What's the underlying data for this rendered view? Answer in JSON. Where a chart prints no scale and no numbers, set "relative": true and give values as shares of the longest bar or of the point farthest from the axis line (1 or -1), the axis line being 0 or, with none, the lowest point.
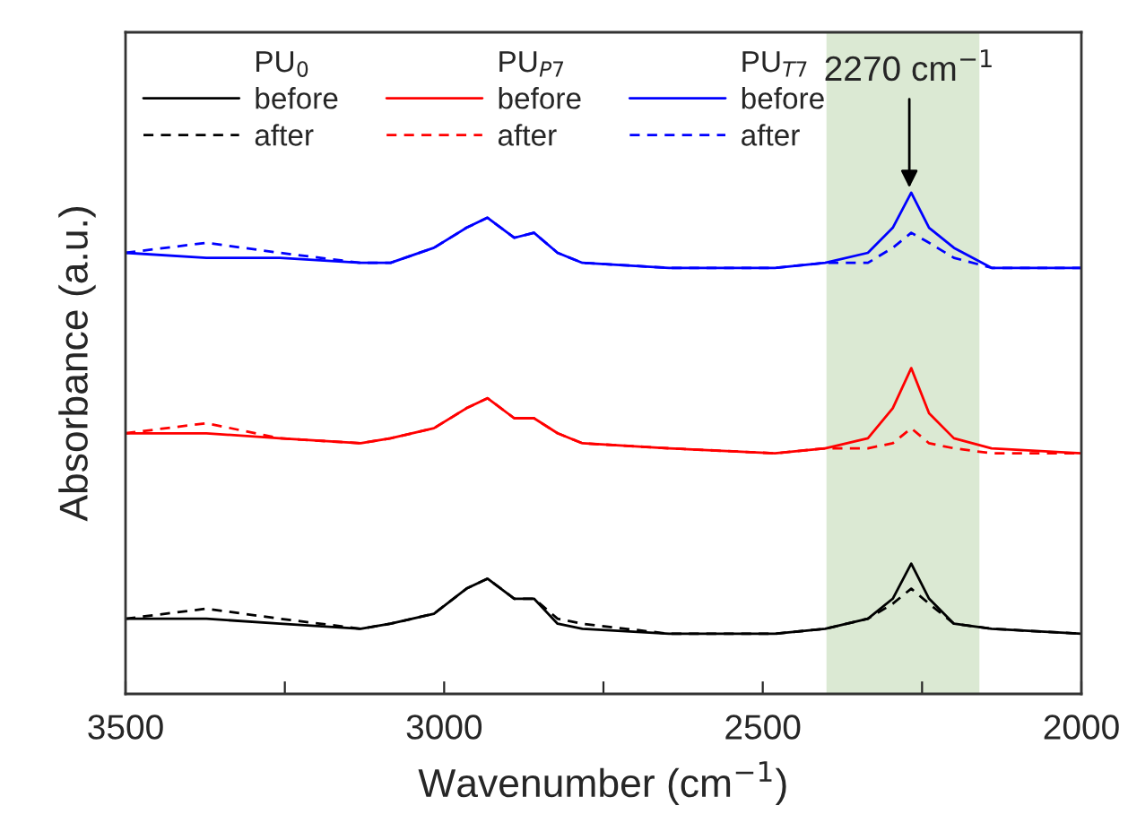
{
  "chart_data": {
    "type": "line",
    "relative": true,
    "xlabel": "Wavenumber (cm$^{−1}$)",
    "ylabel": "Absorbance (a.u.)",
    "x": [
      3500,
      3373,
      3258,
      3131,
      3084,
      3016,
      2965,
      2932,
      2890,
      2859,
      2822,
      2783,
      2647,
      2481,
      2402,
      2335,
      2296,
      2267,
      2239,
      2200,
      2141,
      2000
    ],
    "xlim": [
      3500,
      2000
    ],
    "xticks": [
      3500,
      {
        "value": 3250,
        "label": null
      },
      3000,
      {
        "value": 2750,
        "label": null
      },
      2500,
      {
        "value": 2250,
        "label": null
      },
      2000
    ],
    "series": [
      {
        "name": "before",
        "color": "#000000",
        "line_style": "solid",
        "values": [
          0.15,
          0.15,
          0.14,
          0.13,
          0.14,
          0.16,
          0.21,
          0.23,
          0.19,
          0.19,
          0.14,
          0.13,
          0.12,
          0.12,
          0.13,
          0.15,
          0.19,
          0.26,
          0.19,
          0.14,
          0.13,
          0.12
        ]
      },
      {
        "name": "after",
        "color": "#000000",
        "line_style": "dashed",
        "values": [
          0.15,
          0.17,
          0.15,
          0.13,
          0.14,
          0.16,
          0.21,
          0.23,
          0.19,
          0.19,
          0.15,
          0.14,
          0.12,
          0.12,
          0.13,
          0.15,
          0.18,
          0.21,
          0.18,
          0.14,
          0.13,
          0.12
        ]
      },
      {
        "name": "before",
        "color": "#ff0000",
        "line_style": "solid",
        "values": [
          0.52,
          0.52,
          0.51,
          0.5,
          0.51,
          0.53,
          0.57,
          0.59,
          0.55,
          0.55,
          0.52,
          0.5,
          0.49,
          0.48,
          0.49,
          0.51,
          0.57,
          0.65,
          0.56,
          0.51,
          0.49,
          0.48
        ]
      },
      {
        "name": "after",
        "color": "#ff0000",
        "line_style": "dashed",
        "values": [
          0.52,
          0.54,
          0.51,
          0.5,
          0.51,
          0.53,
          0.57,
          0.59,
          0.55,
          0.55,
          0.52,
          0.5,
          0.49,
          0.48,
          0.49,
          0.49,
          0.5,
          0.53,
          0.5,
          0.49,
          0.48,
          0.48
        ]
      },
      {
        "name": "before",
        "color": "#0000ff",
        "line_style": "solid",
        "values": [
          0.88,
          0.87,
          0.87,
          0.86,
          0.86,
          0.89,
          0.93,
          0.95,
          0.91,
          0.92,
          0.88,
          0.86,
          0.85,
          0.85,
          0.86,
          0.88,
          0.93,
          1.0,
          0.93,
          0.89,
          0.85,
          0.85
        ]
      },
      {
        "name": "after",
        "color": "#0000ff",
        "line_style": "dashed",
        "values": [
          0.88,
          0.9,
          0.88,
          0.86,
          0.86,
          0.89,
          0.93,
          0.95,
          0.91,
          0.92,
          0.88,
          0.86,
          0.85,
          0.85,
          0.86,
          0.86,
          0.89,
          0.92,
          0.9,
          0.87,
          0.85,
          0.85
        ]
      }
    ],
    "bands": [
      {
        "axis": "x",
        "from": 2400,
        "to": 2160,
        "color": "#dbe9d3"
      }
    ],
    "legend": "top left",
    "legend_title": [
      "PU$_{0}$",
      "PU$_{P7}$",
      "PU$_{T7}$"
    ],
    "annotations": [
      {
        "text": "2270 cm$^{−1}$",
        "x": 2270,
        "y": 1.0
      }
    ]
  }
}
